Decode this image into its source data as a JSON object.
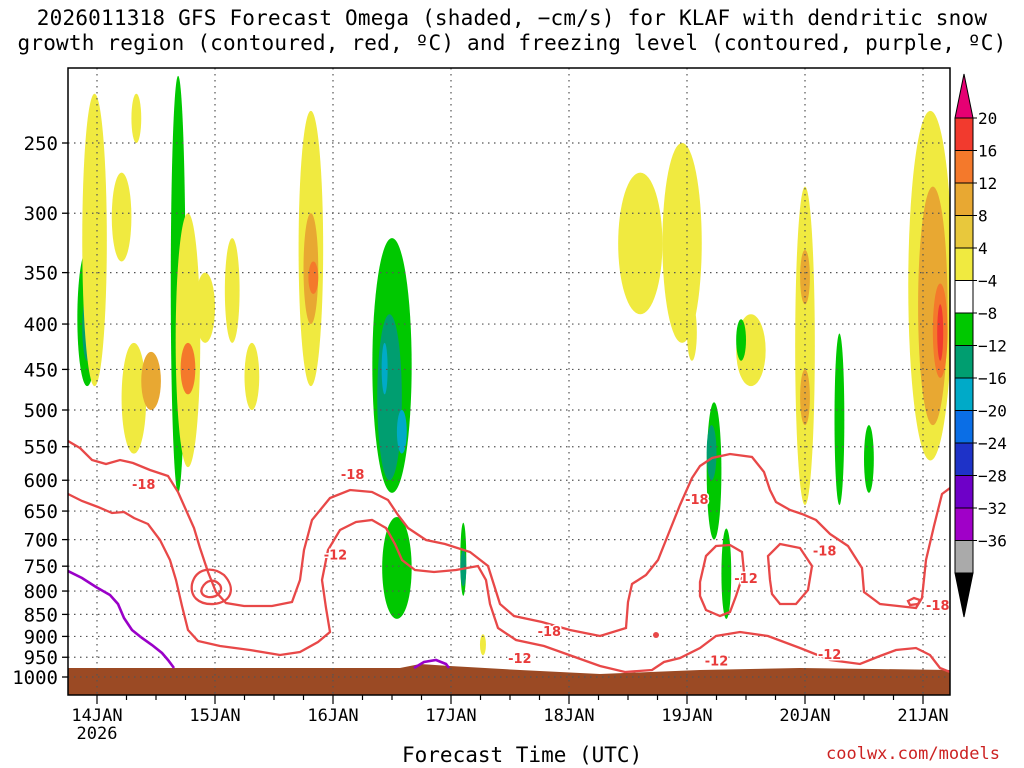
{
  "title_line1": "2026011318 GFS Forecast Omega (shaded, −cm/s) for KLAF with dendritic snow",
  "title_line2": "growth region (contoured, red, ºC) and freezing level (contoured, purple, ºC)",
  "xlabel": "Forecast Time (UTC)",
  "credit": "coolwx.com/models",
  "chart_data": {
    "type": "time-height contour",
    "y_scale": "log-pressure (hPa), inverted",
    "y_ticks": [
      250,
      300,
      350,
      400,
      450,
      500,
      550,
      600,
      650,
      700,
      750,
      800,
      850,
      900,
      950,
      1000
    ],
    "x_ticks": [
      {
        "t": 6,
        "label": "14JAN",
        "sub": "2026"
      },
      {
        "t": 30,
        "label": "15JAN",
        "sub": ""
      },
      {
        "t": 54,
        "label": "16JAN",
        "sub": ""
      },
      {
        "t": 78,
        "label": "17JAN",
        "sub": ""
      },
      {
        "t": 102,
        "label": "18JAN",
        "sub": ""
      },
      {
        "t": 126,
        "label": "19JAN",
        "sub": ""
      },
      {
        "t": 150,
        "label": "20JAN",
        "sub": ""
      },
      {
        "t": 174,
        "label": "21JAN",
        "sub": ""
      }
    ],
    "x_range_hours": [
      0,
      180
    ],
    "grid": true,
    "colorbar": {
      "labels": [
        "20",
        "16",
        "12",
        "8",
        "4",
        "−4",
        "−8",
        "−12",
        "−16",
        "−20",
        "−24",
        "−28",
        "−32",
        "−36"
      ],
      "colors": [
        "#e60073",
        "#f23a2e",
        "#f4792b",
        "#e8a832",
        "#e8c83c",
        "#f0ea40",
        "#ffffff",
        "#00c800",
        "#009e70",
        "#00aac8",
        "#0a6ee6",
        "#1e32c8",
        "#6e00c8",
        "#a000c8",
        "#aaaaaa",
        "#000000"
      ]
    },
    "contour_labels_red": [
      {
        "t": 15.5,
        "p": 606,
        "text": "-18"
      },
      {
        "t": 58,
        "p": 590,
        "text": "-18"
      },
      {
        "t": 54.5,
        "p": 728,
        "text": "-12"
      },
      {
        "t": 98,
        "p": 888,
        "text": "-18"
      },
      {
        "t": 92,
        "p": 952,
        "text": "-12"
      },
      {
        "t": 128,
        "p": 630,
        "text": "-18"
      },
      {
        "t": 132,
        "p": 958,
        "text": "-12"
      },
      {
        "t": 138,
        "p": 773,
        "text": "-12"
      },
      {
        "t": 154,
        "p": 720,
        "text": "-18"
      },
      {
        "t": 155,
        "p": 942,
        "text": "-12"
      },
      {
        "t": 177,
        "p": 830,
        "text": "-18"
      }
    ],
    "omega_features": [
      {
        "t0": 2,
        "t1": 6,
        "p0": 330,
        "p1": 470,
        "v": "-8"
      },
      {
        "t0": 3,
        "t1": 5,
        "p0": 370,
        "p1": 440,
        "v": "-12"
      },
      {
        "t0": 4,
        "t1": 6,
        "p0": 240,
        "p1": 300,
        "v": "12"
      },
      {
        "t0": 3,
        "t1": 8,
        "p0": 220,
        "p1": 470,
        "v": "4"
      },
      {
        "t0": 9,
        "t1": 13,
        "p0": 270,
        "p1": 340,
        "v": "4"
      },
      {
        "t0": 13,
        "t1": 15,
        "p0": 220,
        "p1": 250,
        "v": "4"
      },
      {
        "t0": 11,
        "t1": 16,
        "p0": 420,
        "p1": 560,
        "v": "4"
      },
      {
        "t0": 15,
        "t1": 19,
        "p0": 430,
        "p1": 500,
        "v": "8"
      },
      {
        "t0": 21,
        "t1": 24,
        "p0": 210,
        "p1": 620,
        "v": "-8"
      },
      {
        "t0": 22,
        "t1": 27,
        "p0": 300,
        "p1": 580,
        "v": "4"
      },
      {
        "t0": 23,
        "t1": 26,
        "p0": 420,
        "p1": 480,
        "v": "12"
      },
      {
        "t0": 26,
        "t1": 30,
        "p0": 350,
        "p1": 420,
        "v": "4"
      },
      {
        "t0": 32,
        "t1": 35,
        "p0": 320,
        "p1": 420,
        "v": "4"
      },
      {
        "t0": 36,
        "t1": 39,
        "p0": 420,
        "p1": 500,
        "v": "4"
      },
      {
        "t0": 47,
        "t1": 52,
        "p0": 230,
        "p1": 470,
        "v": "4"
      },
      {
        "t0": 48,
        "t1": 51,
        "p0": 300,
        "p1": 400,
        "v": "8"
      },
      {
        "t0": 49,
        "t1": 51,
        "p0": 340,
        "p1": 370,
        "v": "12"
      },
      {
        "t0": 62,
        "t1": 70,
        "p0": 320,
        "p1": 620,
        "v": "-8"
      },
      {
        "t0": 63,
        "t1": 68,
        "p0": 390,
        "p1": 600,
        "v": "-12"
      },
      {
        "t0": 64,
        "t1": 65,
        "p0": 420,
        "p1": 480,
        "v": "-16"
      },
      {
        "t0": 67,
        "t1": 69,
        "p0": 500,
        "p1": 560,
        "v": "-16"
      },
      {
        "t0": 64,
        "t1": 70,
        "p0": 660,
        "p1": 860,
        "v": "-8"
      },
      {
        "t0": 65,
        "t1": 68,
        "p0": 700,
        "p1": 800,
        "v": "-8"
      },
      {
        "t0": 80,
        "t1": 81,
        "p0": 670,
        "p1": 810,
        "v": "-8"
      },
      {
        "t0": 80,
        "t1": 81,
        "p0": 720,
        "p1": 790,
        "v": "-12"
      },
      {
        "t0": 84,
        "t1": 85,
        "p0": 895,
        "p1": 945,
        "v": "4"
      },
      {
        "t0": 112,
        "t1": 121,
        "p0": 270,
        "p1": 390,
        "v": "4"
      },
      {
        "t0": 121,
        "t1": 129,
        "p0": 250,
        "p1": 420,
        "v": "4"
      },
      {
        "t0": 126,
        "t1": 128,
        "p0": 380,
        "p1": 440,
        "v": "4"
      },
      {
        "t0": 130,
        "t1": 133,
        "p0": 490,
        "p1": 700,
        "v": "-8"
      },
      {
        "t0": 130,
        "t1": 132,
        "p0": 520,
        "p1": 600,
        "v": "-12"
      },
      {
        "t0": 133,
        "t1": 135,
        "p0": 680,
        "p1": 860,
        "v": "-8"
      },
      {
        "t0": 136,
        "t1": 142,
        "p0": 390,
        "p1": 470,
        "v": "4"
      },
      {
        "t0": 136,
        "t1": 138,
        "p0": 395,
        "p1": 440,
        "v": "-8"
      },
      {
        "t0": 148,
        "t1": 152,
        "p0": 280,
        "p1": 640,
        "v": "4"
      },
      {
        "t0": 149,
        "t1": 151,
        "p0": 330,
        "p1": 380,
        "v": "8"
      },
      {
        "t0": 149,
        "t1": 151,
        "p0": 450,
        "p1": 520,
        "v": "8"
      },
      {
        "t0": 156,
        "t1": 158,
        "p0": 410,
        "p1": 640,
        "v": "-8"
      },
      {
        "t0": 162,
        "t1": 164,
        "p0": 520,
        "p1": 620,
        "v": "-8"
      },
      {
        "t0": 171,
        "t1": 180,
        "p0": 230,
        "p1": 570,
        "v": "4"
      },
      {
        "t0": 173,
        "t1": 179,
        "p0": 280,
        "p1": 520,
        "v": "8"
      },
      {
        "t0": 176,
        "t1": 179,
        "p0": 360,
        "p1": 460,
        "v": "12"
      },
      {
        "t0": 177,
        "t1": 178,
        "p0": 380,
        "p1": 440,
        "v": "16"
      }
    ]
  }
}
